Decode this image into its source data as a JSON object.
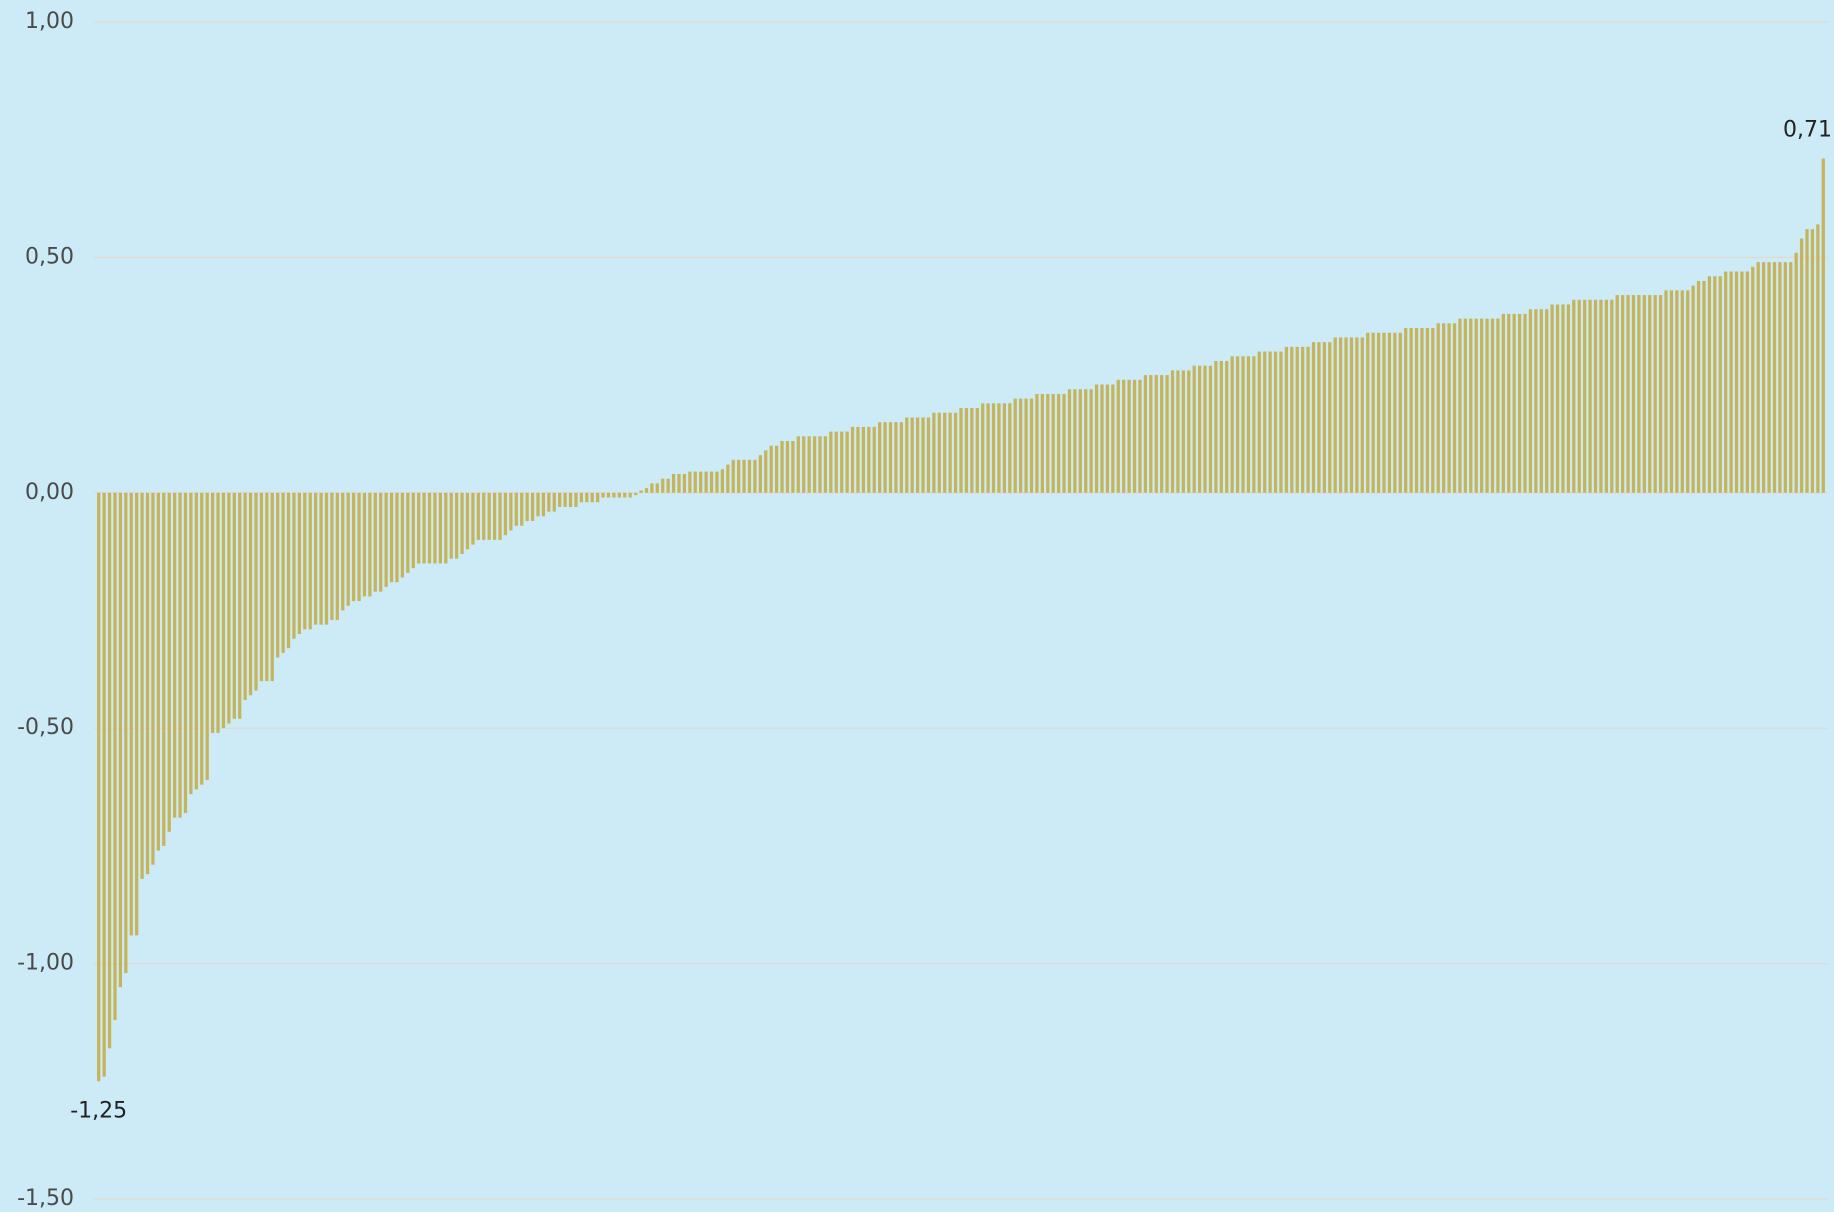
{
  "chart_data": {
    "type": "bar",
    "color": "#c6b45a",
    "grid": true,
    "ylim": [
      -1.5,
      1.0
    ],
    "yticks": [
      {
        "value": -1.5,
        "label": "-1,50"
      },
      {
        "value": -1.0,
        "label": "-1,00"
      },
      {
        "value": -0.5,
        "label": "-0,50"
      },
      {
        "value": 0,
        "label": "0,00"
      },
      {
        "value": 0.5,
        "label": "0,50"
      },
      {
        "value": 1.0,
        "label": "1,00"
      }
    ],
    "extreme_labels": [
      "-1,25",
      "0,71"
    ],
    "values": [
      -1.25,
      -1.24,
      -1.18,
      -1.12,
      -1.05,
      -1.02,
      -0.94,
      -0.94,
      -0.82,
      -0.81,
      -0.79,
      -0.76,
      -0.75,
      -0.72,
      -0.69,
      -0.69,
      -0.68,
      -0.64,
      -0.63,
      -0.62,
      -0.61,
      -0.51,
      -0.51,
      -0.5,
      -0.49,
      -0.48,
      -0.48,
      -0.44,
      -0.43,
      -0.42,
      -0.4,
      -0.4,
      -0.4,
      -0.35,
      -0.34,
      -0.33,
      -0.31,
      -0.3,
      -0.29,
      -0.29,
      -0.28,
      -0.28,
      -0.28,
      -0.27,
      -0.27,
      -0.25,
      -0.24,
      -0.23,
      -0.23,
      -0.22,
      -0.22,
      -0.21,
      -0.21,
      -0.2,
      -0.19,
      -0.19,
      -0.18,
      -0.17,
      -0.16,
      -0.15,
      -0.15,
      -0.15,
      -0.15,
      -0.15,
      -0.15,
      -0.14,
      -0.14,
      -0.13,
      -0.12,
      -0.11,
      -0.1,
      -0.1,
      -0.1,
      -0.1,
      -0.1,
      -0.09,
      -0.08,
      -0.07,
      -0.07,
      -0.06,
      -0.06,
      -0.05,
      -0.05,
      -0.04,
      -0.04,
      -0.03,
      -0.03,
      -0.03,
      -0.03,
      -0.02,
      -0.02,
      -0.02,
      -0.02,
      -0.01,
      -0.01,
      -0.01,
      -0.01,
      -0.01,
      -0.01,
      -0.005,
      0.005,
      0.01,
      0.02,
      0.02,
      0.03,
      0.03,
      0.04,
      0.04,
      0.04,
      0.045,
      0.045,
      0.045,
      0.045,
      0.045,
      0.045,
      0.05,
      0.06,
      0.07,
      0.07,
      0.07,
      0.07,
      0.07,
      0.08,
      0.09,
      0.1,
      0.1,
      0.11,
      0.11,
      0.11,
      0.12,
      0.12,
      0.12,
      0.12,
      0.12,
      0.12,
      0.13,
      0.13,
      0.13,
      0.13,
      0.14,
      0.14,
      0.14,
      0.14,
      0.14,
      0.15,
      0.15,
      0.15,
      0.15,
      0.15,
      0.16,
      0.16,
      0.16,
      0.16,
      0.16,
      0.17,
      0.17,
      0.17,
      0.17,
      0.17,
      0.18,
      0.18,
      0.18,
      0.18,
      0.19,
      0.19,
      0.19,
      0.19,
      0.19,
      0.19,
      0.2,
      0.2,
      0.2,
      0.2,
      0.21,
      0.21,
      0.21,
      0.21,
      0.21,
      0.21,
      0.22,
      0.22,
      0.22,
      0.22,
      0.22,
      0.23,
      0.23,
      0.23,
      0.23,
      0.24,
      0.24,
      0.24,
      0.24,
      0.24,
      0.25,
      0.25,
      0.25,
      0.25,
      0.25,
      0.26,
      0.26,
      0.26,
      0.26,
      0.27,
      0.27,
      0.27,
      0.27,
      0.28,
      0.28,
      0.28,
      0.29,
      0.29,
      0.29,
      0.29,
      0.29,
      0.3,
      0.3,
      0.3,
      0.3,
      0.3,
      0.31,
      0.31,
      0.31,
      0.31,
      0.31,
      0.32,
      0.32,
      0.32,
      0.32,
      0.33,
      0.33,
      0.33,
      0.33,
      0.33,
      0.33,
      0.34,
      0.34,
      0.34,
      0.34,
      0.34,
      0.34,
      0.34,
      0.35,
      0.35,
      0.35,
      0.35,
      0.35,
      0.35,
      0.36,
      0.36,
      0.36,
      0.36,
      0.37,
      0.37,
      0.37,
      0.37,
      0.37,
      0.37,
      0.37,
      0.37,
      0.38,
      0.38,
      0.38,
      0.38,
      0.38,
      0.39,
      0.39,
      0.39,
      0.39,
      0.4,
      0.4,
      0.4,
      0.4,
      0.41,
      0.41,
      0.41,
      0.41,
      0.41,
      0.41,
      0.41,
      0.41,
      0.42,
      0.42,
      0.42,
      0.42,
      0.42,
      0.42,
      0.42,
      0.42,
      0.42,
      0.43,
      0.43,
      0.43,
      0.43,
      0.43,
      0.44,
      0.45,
      0.45,
      0.46,
      0.46,
      0.46,
      0.47,
      0.47,
      0.47,
      0.47,
      0.47,
      0.48,
      0.49,
      0.49,
      0.49,
      0.49,
      0.49,
      0.49,
      0.49,
      0.51,
      0.54,
      0.56,
      0.56,
      0.57,
      0.71
    ]
  }
}
